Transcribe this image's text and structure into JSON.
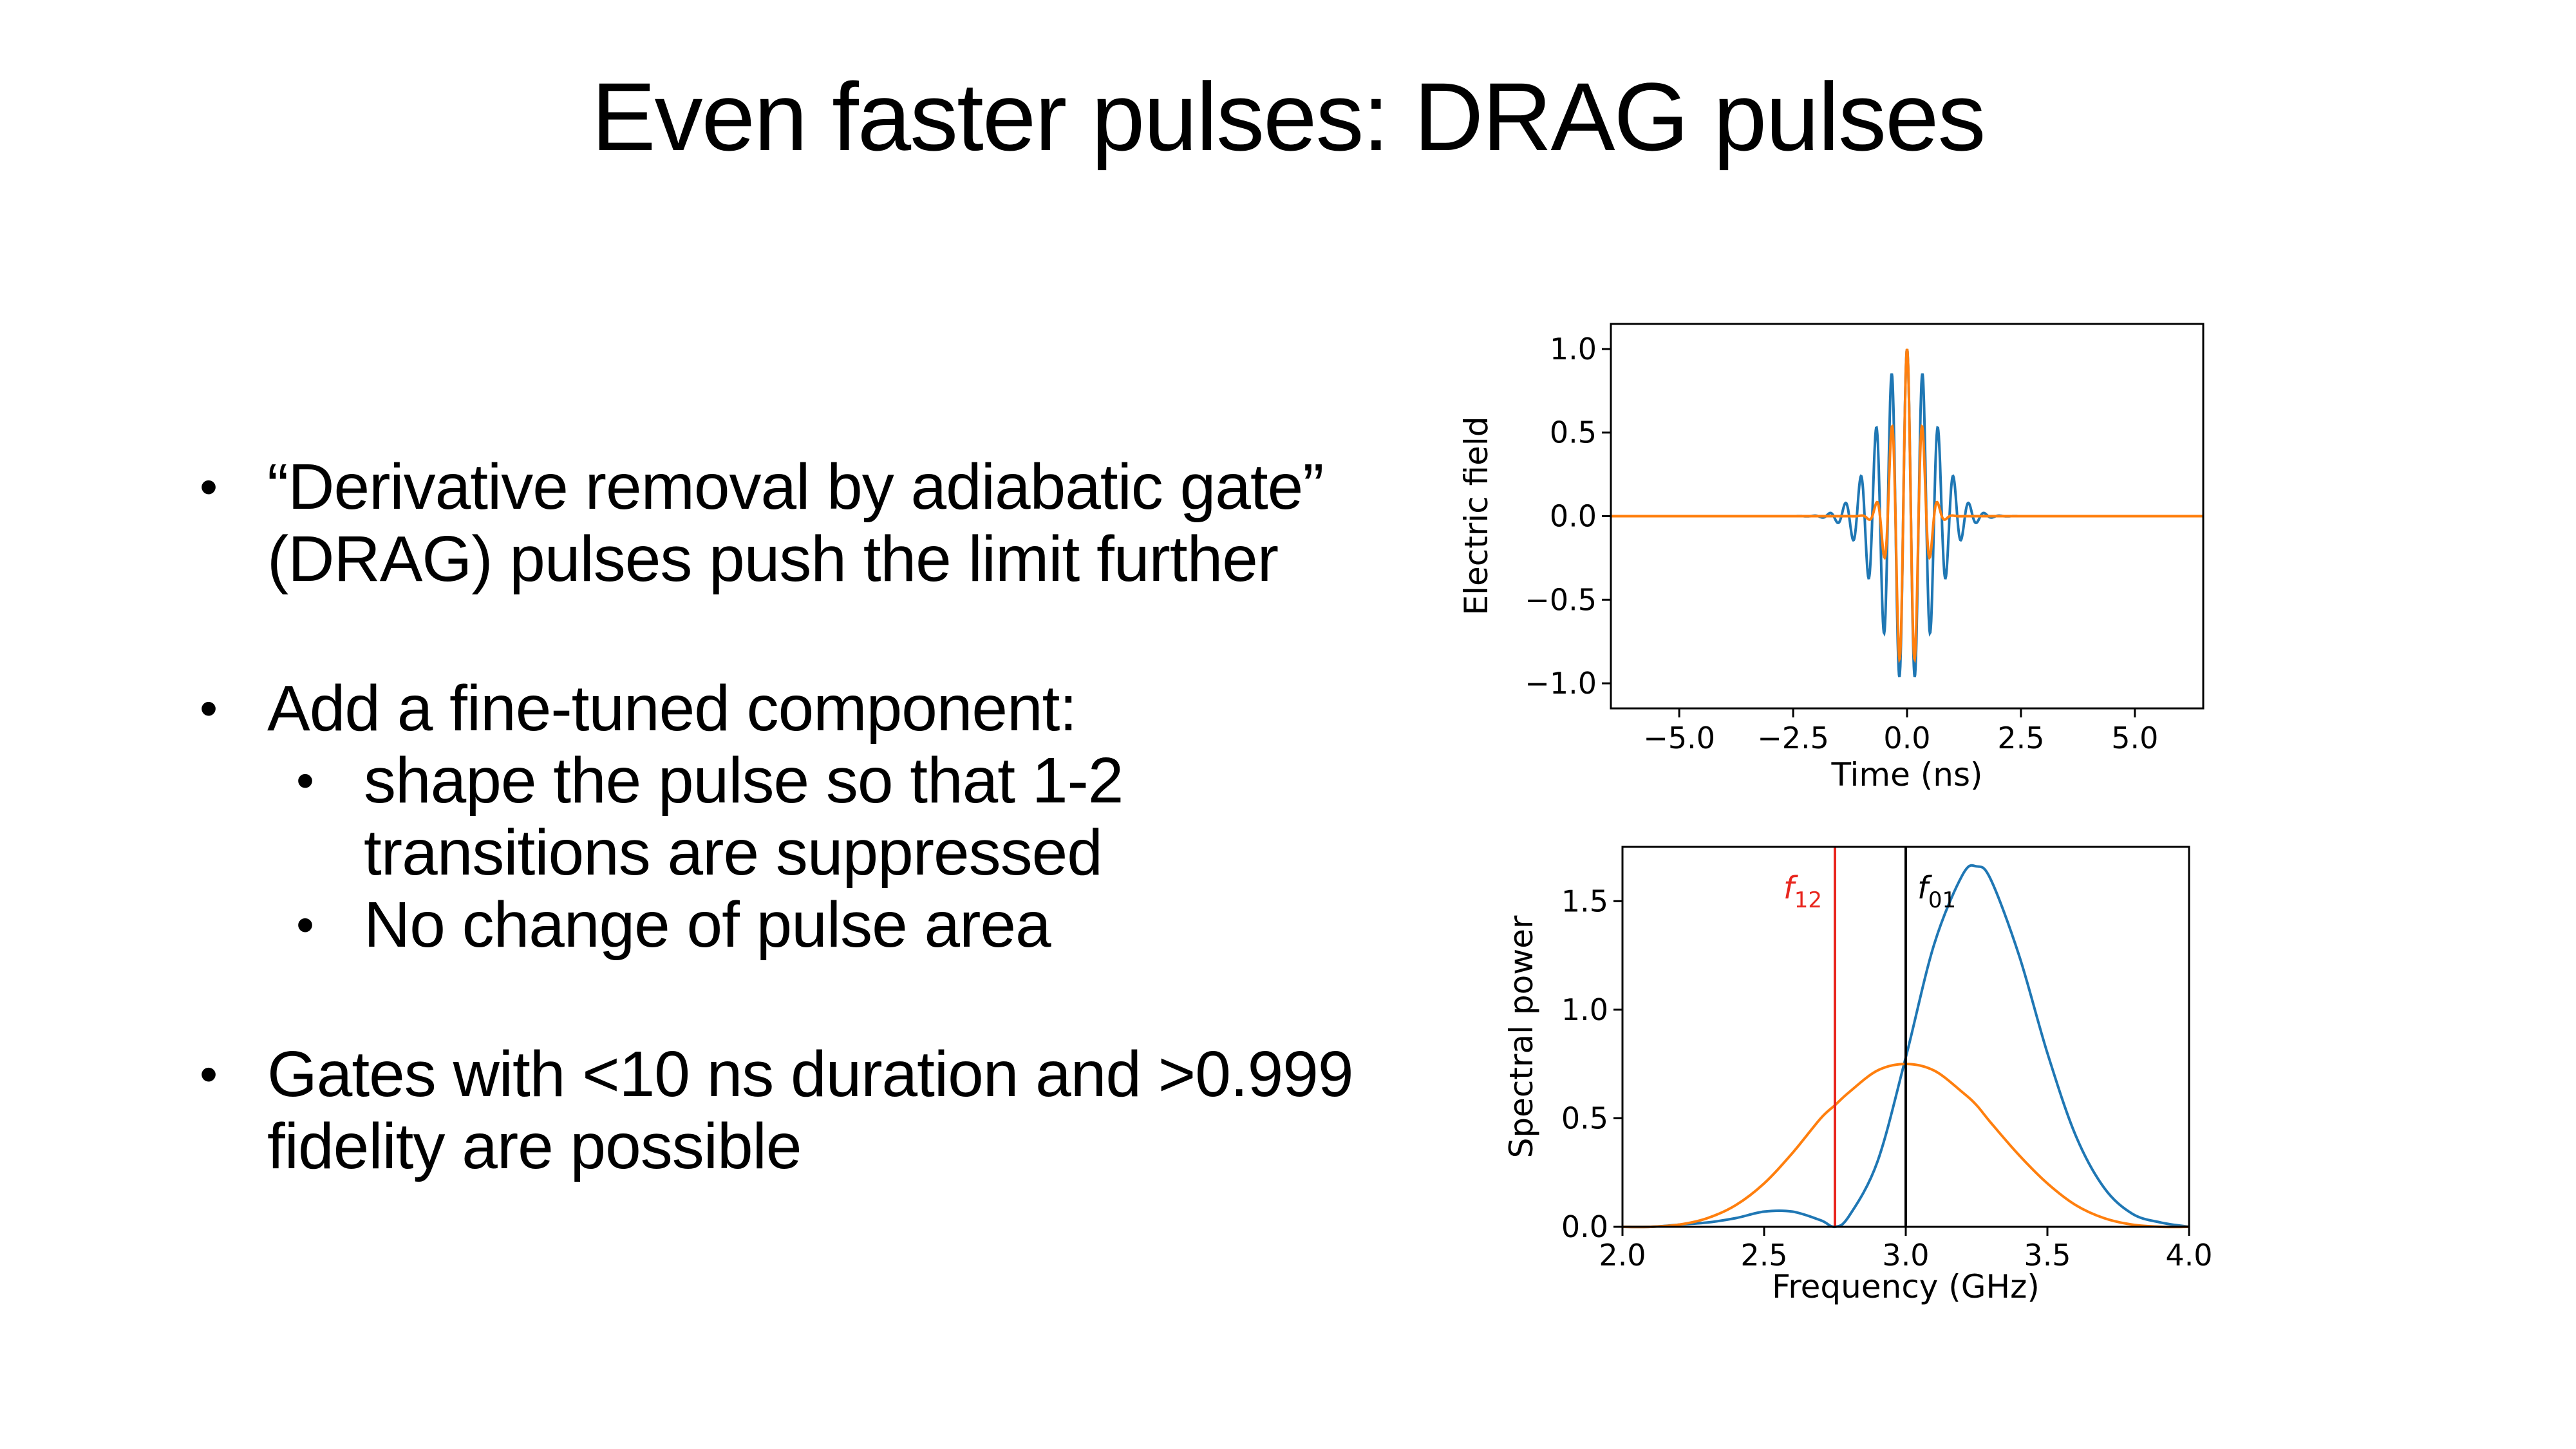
{
  "slide": {
    "title": "Even faster pulses: DRAG pulses",
    "bullets": [
      {
        "level": 1,
        "text": "“Derivative removal by adiabatic gate” (DRAG) pulses push the limit further"
      },
      {
        "level": 1,
        "text": "Add a fine-tuned component:"
      },
      {
        "level": 2,
        "text": "shape the pulse so that 1-2 transitions are suppressed"
      },
      {
        "level": 2,
        "text": "No change of pulse area"
      },
      {
        "level": 1,
        "text": "Gates with <10 ns duration and >0.999 fidelity are possible"
      }
    ]
  },
  "colors": {
    "blue": "#1f77b4",
    "orange": "#ff7f0e",
    "red": "#e8261e",
    "black": "#000000"
  },
  "chart_data": [
    {
      "type": "line",
      "xlabel": "Time (ns)",
      "ylabel": "Electric field",
      "xlim": [
        -6.5,
        6.5
      ],
      "ylim": [
        -1.15,
        1.15
      ],
      "xticks": [
        "−5.0",
        "−2.5",
        "0.0",
        "2.5",
        "5.0"
      ],
      "xtick_values": [
        -5.0,
        -2.5,
        0.0,
        2.5,
        5.0
      ],
      "yticks": [
        "−1.0",
        "−0.5",
        "0.0",
        "0.5",
        "1.0"
      ],
      "ytick_values": [
        -1.0,
        -0.5,
        0.0,
        0.5,
        1.0
      ],
      "series": [
        {
          "description": "wider Gaussian-enveloped oscillation, peak amplitude 1.0, envelope sigma ~0.6 ns",
          "color": "blue",
          "amplitude": 1.0,
          "sigma_ns": 0.6,
          "carrier_ghz": 2.95
        },
        {
          "description": "narrower Gaussian-enveloped oscillation, peak amplitude 1.0, envelope sigma ~0.3 ns",
          "color": "orange",
          "amplitude": 1.0,
          "sigma_ns": 0.3,
          "carrier_ghz": 2.95
        }
      ],
      "grid": false
    },
    {
      "type": "line",
      "xlabel": "Frequency (GHz)",
      "ylabel": "Spectral power",
      "xlim": [
        2.0,
        4.0
      ],
      "ylim": [
        0.0,
        1.75
      ],
      "xticks": [
        "2.0",
        "2.5",
        "3.0",
        "3.5",
        "4.0"
      ],
      "xtick_values": [
        2.0,
        2.5,
        3.0,
        3.5,
        4.0
      ],
      "yticks": [
        "0.0",
        "0.5",
        "1.0",
        "1.5"
      ],
      "ytick_values": [
        0.0,
        0.5,
        1.0,
        1.5
      ],
      "x": [
        2.0,
        2.1,
        2.2,
        2.3,
        2.4,
        2.5,
        2.6,
        2.7,
        2.75,
        2.8,
        2.9,
        3.0,
        3.1,
        3.2,
        3.25,
        3.3,
        3.4,
        3.5,
        3.6,
        3.7,
        3.8,
        3.9,
        4.0
      ],
      "series": [
        {
          "color": "blue",
          "values": [
            0.0,
            0.0,
            0.01,
            0.02,
            0.04,
            0.07,
            0.07,
            0.03,
            0.0,
            0.05,
            0.3,
            0.78,
            1.3,
            1.62,
            1.66,
            1.6,
            1.25,
            0.8,
            0.42,
            0.18,
            0.06,
            0.02,
            0.0
          ]
        },
        {
          "color": "orange",
          "values": [
            0.0,
            0.0,
            0.01,
            0.04,
            0.1,
            0.2,
            0.34,
            0.5,
            0.56,
            0.62,
            0.72,
            0.75,
            0.72,
            0.62,
            0.56,
            0.48,
            0.33,
            0.2,
            0.1,
            0.04,
            0.01,
            0.0,
            0.0
          ]
        }
      ],
      "vlines": [
        {
          "x": 2.75,
          "label_main": "f",
          "label_sub": "12",
          "color": "red"
        },
        {
          "x": 3.0,
          "label_main": "f",
          "label_sub": "01",
          "color": "black"
        }
      ],
      "grid": false
    }
  ]
}
